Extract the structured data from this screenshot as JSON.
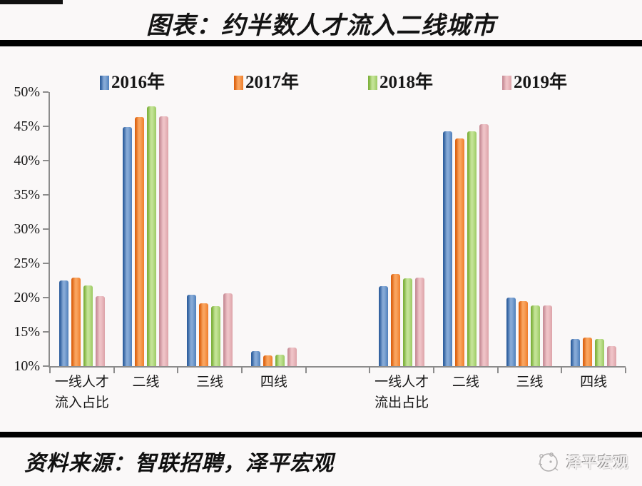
{
  "title": "图表：约半数人才流入二线城市",
  "source_note": "资料来源：智联招聘，泽平宏观",
  "watermark": {
    "icon": "zeping-logo-icon",
    "text": "泽平宏观"
  },
  "legend": {
    "position": "top",
    "labels": [
      "2016年",
      "2017年",
      "2018年",
      "2019年"
    ]
  },
  "colors": {
    "background": "#faf8f8",
    "axis": "#8c8c8c",
    "divider": "#000000",
    "series": [
      {
        "name": "2016年",
        "main": "#4e7fbb",
        "edge": "#31619f",
        "light": "#85a9d6"
      },
      {
        "name": "2017年",
        "main": "#ef7d2a",
        "edge": "#dd6413",
        "light": "#f9a45e"
      },
      {
        "name": "2018年",
        "main": "#9bca62",
        "edge": "#7fb23e",
        "light": "#c3e295"
      },
      {
        "name": "2019年",
        "main": "#dda3a9",
        "edge": "#c9909a",
        "light": "#eec2c6"
      }
    ]
  },
  "chart_data": {
    "type": "bar",
    "title": "图表：约半数人才流入二线城市",
    "xlabel": "",
    "ylabel": "",
    "ylim": [
      10,
      50
    ],
    "ytick_step": 5,
    "yticks": [
      "10%",
      "15%",
      "20%",
      "25%",
      "30%",
      "35%",
      "40%",
      "45%",
      "50%"
    ],
    "grid": false,
    "legend_position": "top",
    "categories": [
      "一线人才\n流入占比",
      "二线",
      "三线",
      "四线",
      "",
      "一线人才\n流出占比",
      "二线",
      "三线",
      "四线"
    ],
    "series": [
      {
        "name": "2016年",
        "values": [
          22.5,
          44.9,
          20.4,
          12.2,
          null,
          21.7,
          44.3,
          20.0,
          14.0
        ]
      },
      {
        "name": "2017年",
        "values": [
          22.9,
          46.4,
          19.2,
          11.6,
          null,
          23.4,
          43.2,
          19.5,
          14.2
        ]
      },
      {
        "name": "2018年",
        "values": [
          21.8,
          47.9,
          18.7,
          11.7,
          null,
          22.8,
          44.3,
          18.9,
          14.0
        ]
      },
      {
        "name": "2019年",
        "values": [
          20.2,
          46.5,
          20.6,
          12.7,
          null,
          22.9,
          45.3,
          18.9,
          12.9
        ]
      }
    ]
  }
}
